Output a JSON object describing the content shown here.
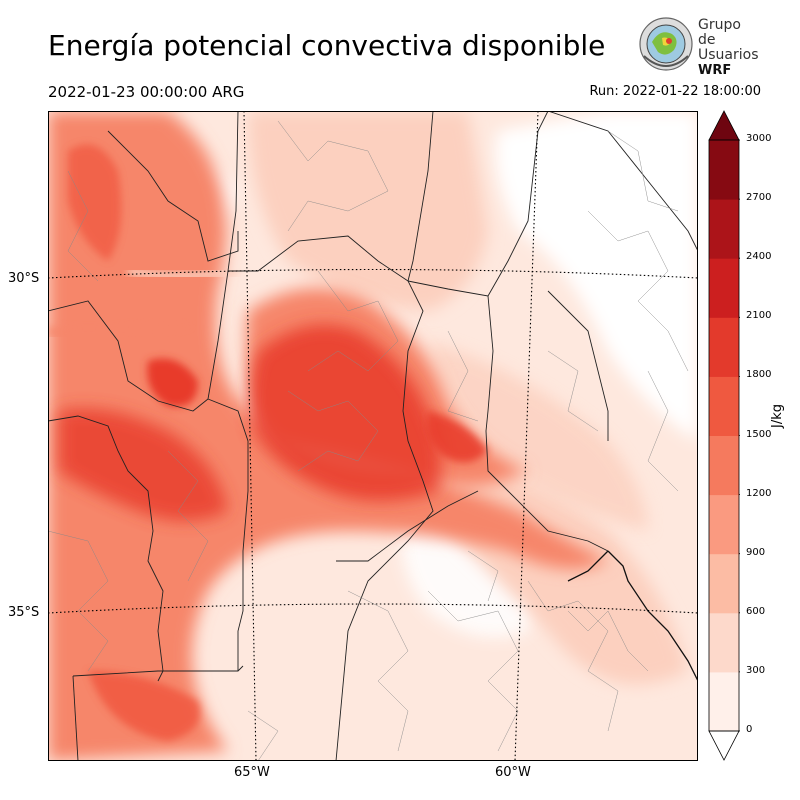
{
  "title": "Energía potencial convectiva disponible",
  "valid_time": "2022-01-23 00:00:00 ARG",
  "run_time": "Run: 2022-01-22 18:00:00",
  "logo": {
    "line1": "Grupo de",
    "line2": "Usuarios",
    "line3": "WRF"
  },
  "map": {
    "lat_labels": [
      "30°S",
      "35°S"
    ],
    "lon_labels": [
      "65°W",
      "60°W"
    ],
    "field": "CAPE",
    "colors": {
      "high": "#e83a2a",
      "mid": "#f6866a",
      "low": "#fcd0bf",
      "faint": "#fee8de"
    }
  },
  "colorbar": {
    "unit": "J/kg",
    "ticks": [
      "0",
      "300",
      "600",
      "900",
      "1200",
      "1500",
      "1800",
      "2100",
      "2400",
      "2700",
      "3000"
    ],
    "colors": [
      "#fff0ea",
      "#fdd9cb",
      "#fcbca4",
      "#fa9a80",
      "#f57a5e",
      "#ef5940",
      "#e33a2c",
      "#cc1f1f",
      "#ac1419",
      "#860a12"
    ],
    "extend_color": "#6e0510"
  }
}
